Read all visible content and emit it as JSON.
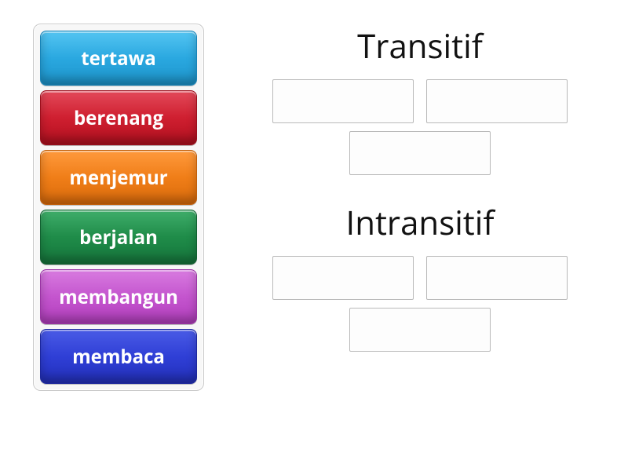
{
  "words": [
    {
      "label": "tertawa",
      "bg": "linear-gradient(to bottom,#54c5f2 0%,#2aa8e0 50%,#1d95cc 100%)",
      "border": "#1683b8"
    },
    {
      "label": "berenang",
      "bg": "linear-gradient(to bottom,#e34a5a 0%,#cf1f30 50%,#b3101f 100%)",
      "border": "#9b0e1b"
    },
    {
      "label": "menjemur",
      "bg": "linear-gradient(to bottom,#ff9a3d 0%,#f07e18 50%,#db6c0c 100%)",
      "border": "#c05e09"
    },
    {
      "label": "berjalan",
      "bg": "linear-gradient(to bottom,#3fae6a 0%,#1f8c49 50%,#16763c 100%)",
      "border": "#115f30"
    },
    {
      "label": "membangun",
      "bg": "linear-gradient(to bottom,#d87be0 0%,#c455ce 50%,#b33fbe 100%)",
      "border": "#9a32a4"
    },
    {
      "label": "membaca",
      "bg": "linear-gradient(to bottom,#4a5be6 0%,#2f3fd6 50%,#2330bc 100%)",
      "border": "#1b269c"
    }
  ],
  "word_tile_font_size": 24,
  "groups": [
    {
      "title": "Transitif",
      "slot_rows": [
        2,
        1
      ]
    },
    {
      "title": "Intransitif",
      "slot_rows": [
        2,
        1
      ]
    }
  ],
  "colors": {
    "page_bg": "#ffffff",
    "panel_bg": "#f7f7f7",
    "panel_border": "#c8c8c8",
    "slot_border": "#b9b9b9",
    "slot_bg": "#fdfdfd",
    "title_color": "#121212"
  },
  "title_font_size": 42
}
